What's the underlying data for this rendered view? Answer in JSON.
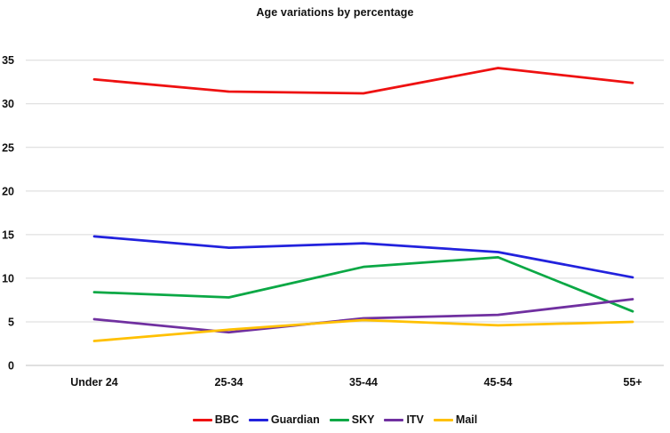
{
  "page": {
    "background_color": "#ffffff",
    "text_color": "#111111"
  },
  "chart_data": {
    "type": "line",
    "title": "Age variations by percentage",
    "categories": [
      "Under 24",
      "25-34",
      "35-44",
      "45-54",
      "55+"
    ],
    "series": [
      {
        "name": "BBC",
        "color": "#ee1111",
        "values": [
          32.8,
          31.4,
          31.2,
          34.1,
          32.4
        ]
      },
      {
        "name": "Guardian",
        "color": "#2222dd",
        "values": [
          14.8,
          13.5,
          14.0,
          13.0,
          10.1
        ]
      },
      {
        "name": "SKY",
        "color": "#0ba845",
        "values": [
          8.4,
          7.8,
          11.3,
          12.4,
          6.2
        ]
      },
      {
        "name": "ITV",
        "color": "#7030a0",
        "values": [
          5.3,
          3.8,
          5.4,
          5.8,
          7.6
        ]
      },
      {
        "name": "Mail",
        "color": "#ffc000",
        "values": [
          2.8,
          4.1,
          5.2,
          4.6,
          5.0
        ]
      }
    ],
    "xlabel": "",
    "ylabel": "",
    "ylim": [
      0,
      35
    ],
    "yticks": [
      0,
      5,
      10,
      15,
      20,
      25,
      30,
      35
    ],
    "grid": true,
    "gridline_color": "#d9d9d9",
    "axis_line_color": "#c0c0c0",
    "legend_position": "bottom",
    "legend_labels": [
      "BBC",
      "Guardian",
      "SKY",
      "ITV",
      "Mail"
    ]
  }
}
